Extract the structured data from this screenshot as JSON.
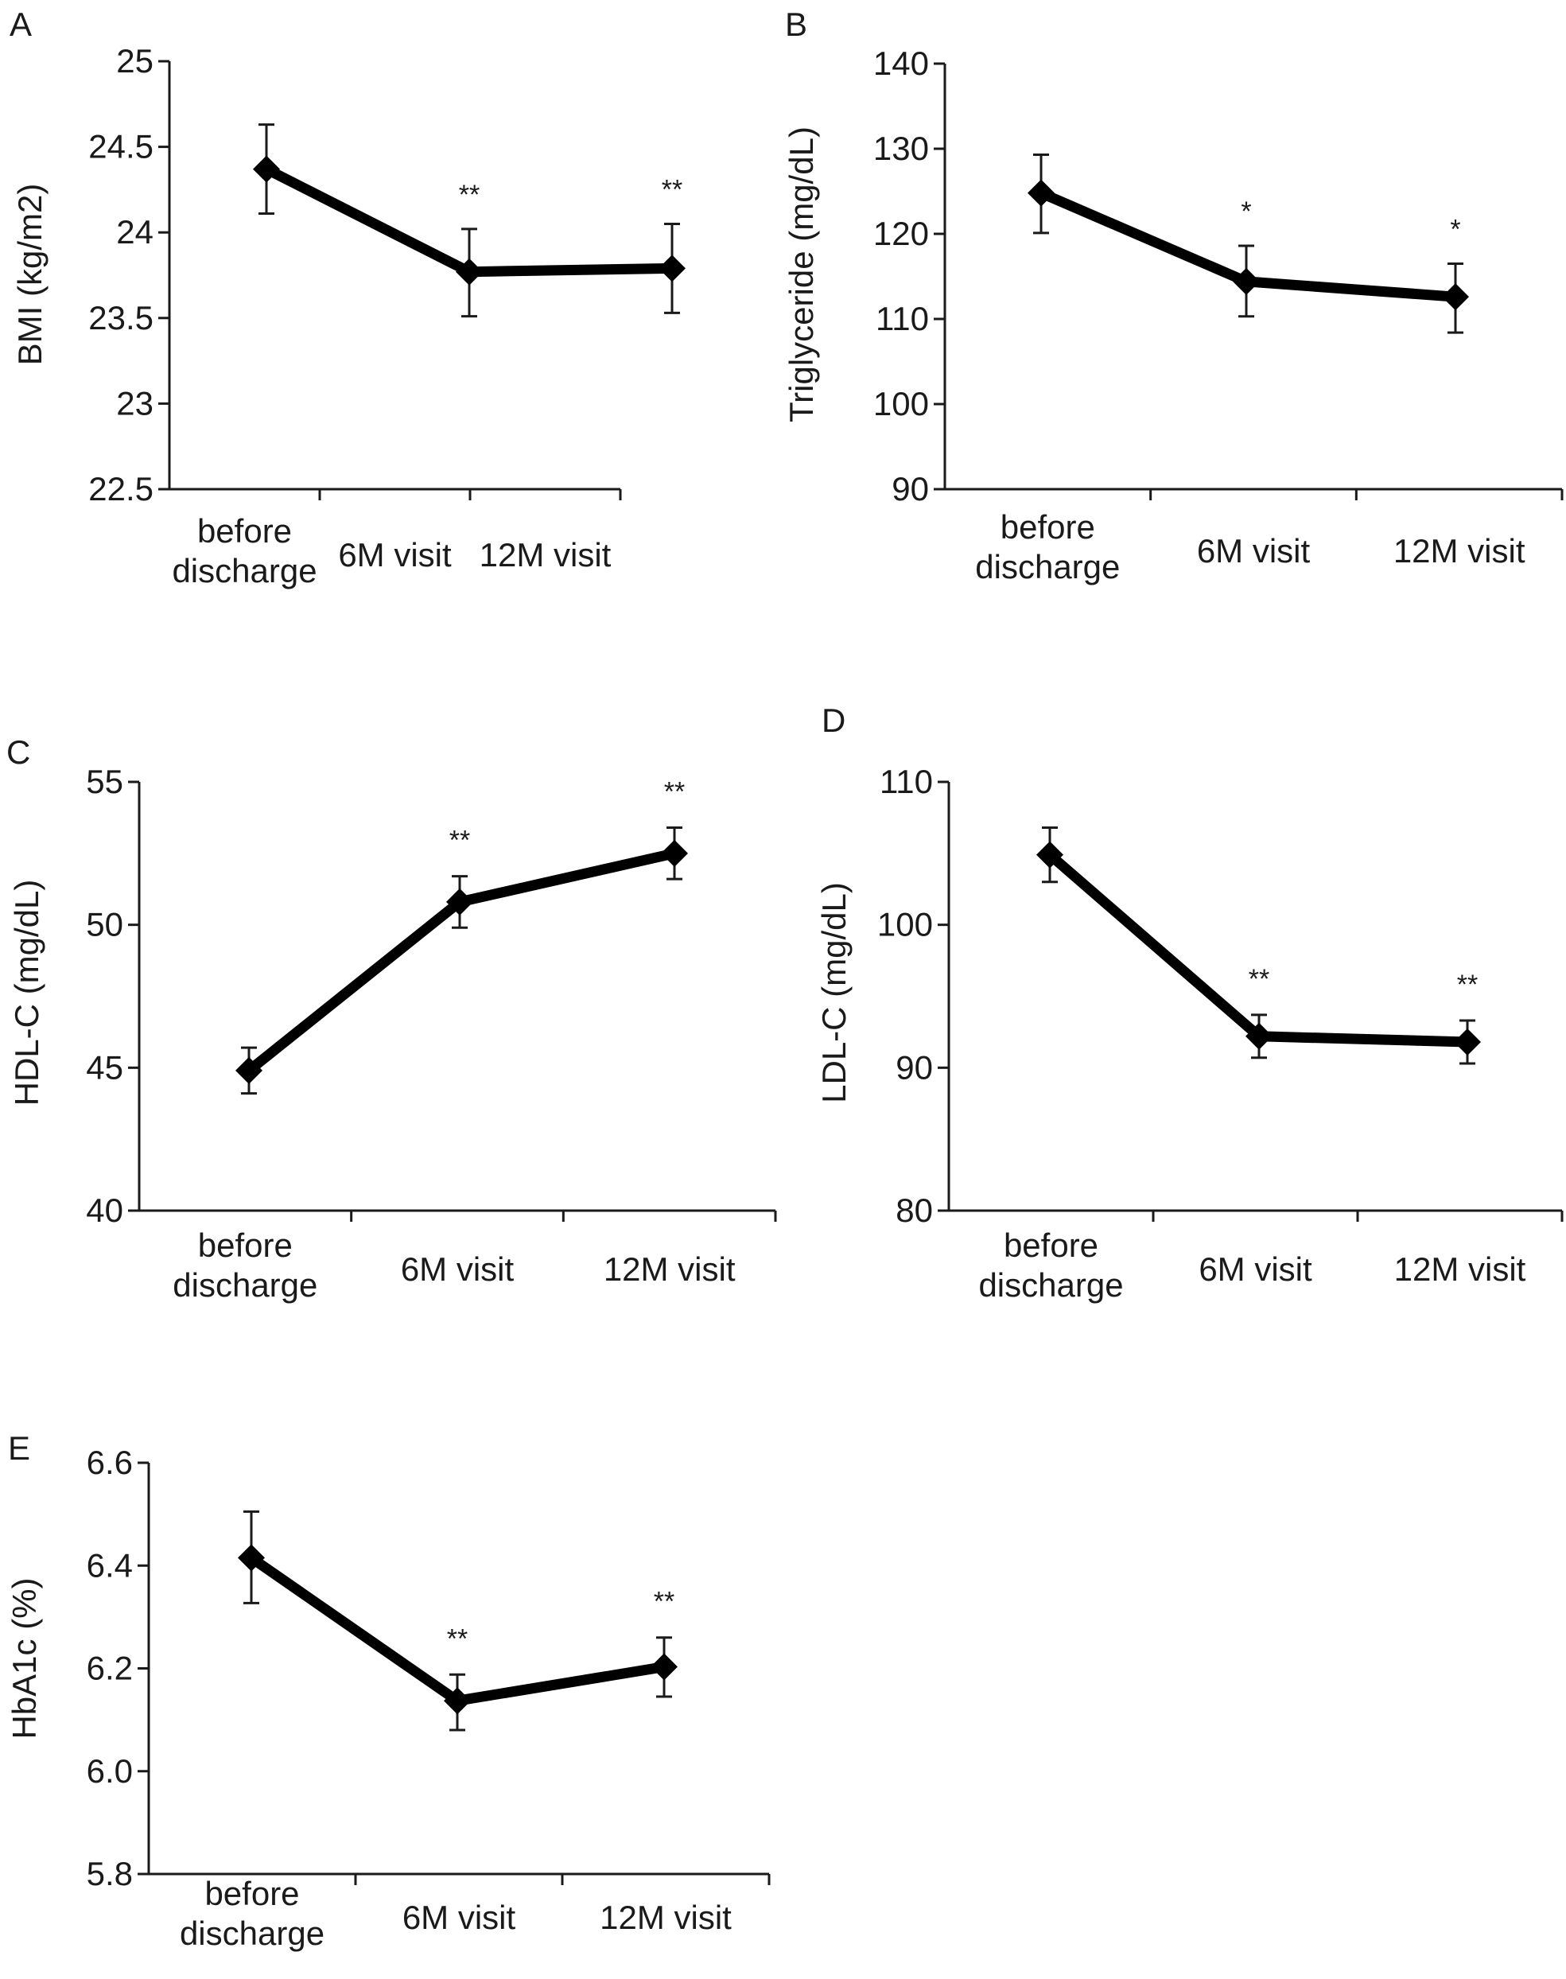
{
  "chart_data": [
    {
      "id": "A",
      "type": "line",
      "panel_label": "A",
      "ylabel": "BMI (kg/m2)",
      "ylim": [
        22.5,
        25
      ],
      "yticks": [
        22.5,
        23,
        23.5,
        24,
        24.5,
        25
      ],
      "ytick_labels": [
        "22.5",
        "23",
        "23.5",
        "24",
        "24.5",
        "25"
      ],
      "categories": [
        [
          "before",
          "discharge"
        ],
        [
          "6M visit"
        ],
        [
          "12M visit"
        ]
      ],
      "values": [
        24.37,
        23.77,
        23.79
      ],
      "err_upper": [
        24.63,
        24.02,
        24.05
      ],
      "err_lower": [
        24.11,
        23.51,
        23.53
      ],
      "significance": [
        "",
        "**",
        "**"
      ]
    },
    {
      "id": "B",
      "type": "line",
      "panel_label": "B",
      "ylabel": "Triglyceride (mg/dL)",
      "ylim": [
        90,
        140
      ],
      "yticks": [
        90,
        100,
        110,
        120,
        130,
        140
      ],
      "ytick_labels": [
        "90",
        "100",
        "110",
        "120",
        "130",
        "140"
      ],
      "categories": [
        [
          "before",
          "discharge"
        ],
        [
          "6M visit"
        ],
        [
          "12M visit"
        ]
      ],
      "values": [
        124.8,
        114.4,
        112.6
      ],
      "err_upper": [
        129.3,
        118.6,
        116.5
      ],
      "err_lower": [
        120.1,
        110.3,
        108.4
      ],
      "significance": [
        "",
        "*",
        "*"
      ]
    },
    {
      "id": "C",
      "type": "line",
      "panel_label": "C",
      "ylabel": "HDL-C (mg/dL)",
      "ylim": [
        40,
        55
      ],
      "yticks": [
        40,
        45,
        50,
        55
      ],
      "ytick_labels": [
        "40",
        "45",
        "50",
        "55"
      ],
      "categories": [
        [
          "before",
          "discharge"
        ],
        [
          "6M visit"
        ],
        [
          "12M visit"
        ]
      ],
      "values": [
        44.9,
        50.8,
        52.5
      ],
      "err_upper": [
        45.7,
        51.7,
        53.4
      ],
      "err_lower": [
        44.1,
        49.9,
        51.6
      ],
      "significance": [
        "",
        "**",
        "**"
      ]
    },
    {
      "id": "D",
      "type": "line",
      "panel_label": "D",
      "ylabel": "LDL-C (mg/dL)",
      "ylim": [
        80,
        110
      ],
      "yticks": [
        80,
        90,
        100,
        110
      ],
      "ytick_labels": [
        "80",
        "90",
        "100",
        "110"
      ],
      "categories": [
        [
          "before",
          "discharge"
        ],
        [
          "6M visit"
        ],
        [
          "12M visit"
        ]
      ],
      "values": [
        104.9,
        92.2,
        91.8
      ],
      "err_upper": [
        106.8,
        93.7,
        93.3
      ],
      "err_lower": [
        103.0,
        90.7,
        90.3
      ],
      "significance": [
        "",
        "**",
        "**"
      ]
    },
    {
      "id": "E",
      "type": "line",
      "panel_label": "E",
      "ylabel": "HbA1c (%)",
      "ylim": [
        5.8,
        6.6
      ],
      "yticks": [
        5.8,
        6.0,
        6.2,
        6.4,
        6.6
      ],
      "ytick_labels": [
        "5.8",
        "6.0",
        "6.2",
        "6.4",
        "6.6"
      ],
      "categories": [
        [
          "before",
          "discharge"
        ],
        [
          "6M visit"
        ],
        [
          "12M visit"
        ]
      ],
      "values": [
        6.415,
        6.137,
        6.203
      ],
      "err_upper": [
        6.505,
        6.188,
        6.26
      ],
      "err_lower": [
        6.327,
        6.08,
        6.145
      ],
      "significance": [
        "",
        "**",
        "**"
      ]
    }
  ]
}
